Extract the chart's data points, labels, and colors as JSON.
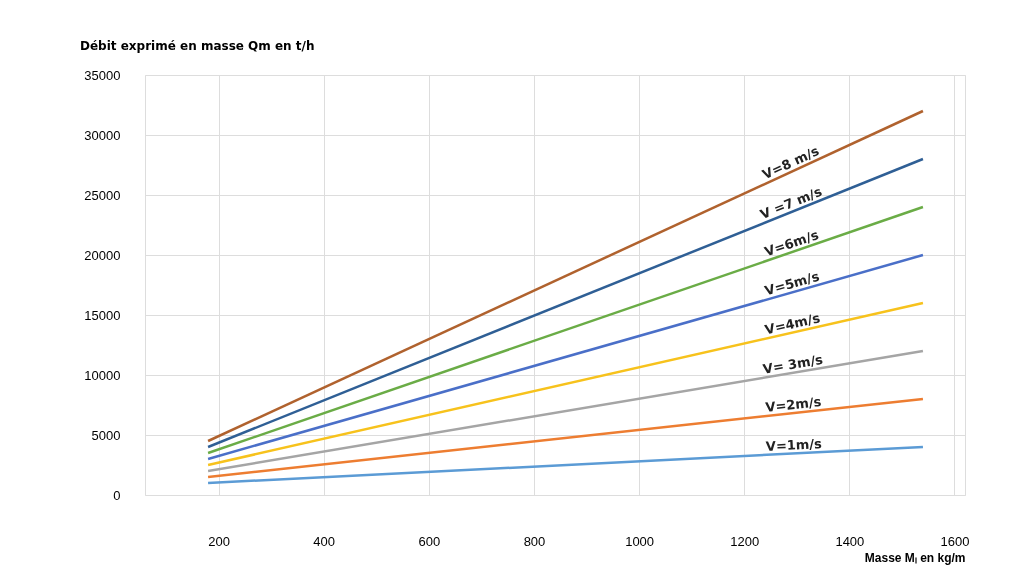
{
  "chart_data": {
    "type": "line",
    "ylabel": "Débit exprimé en masse Qm en t/h",
    "xlabel": "Masse Mₗ en kg/m",
    "xlim": [
      60,
      1620
    ],
    "xticks": [
      200,
      400,
      600,
      800,
      1000,
      1200,
      1400,
      1600
    ],
    "ylim": [
      0,
      35000
    ],
    "yticks": [
      0,
      5000,
      10000,
      15000,
      20000,
      25000,
      30000,
      35000
    ],
    "grid": true,
    "legend": false,
    "line_style": "solid",
    "marker": "none",
    "x": [
      180,
      1540
    ],
    "series": [
      {
        "name": "V=8 m/s",
        "color": "#b0622e",
        "values": [
          4500,
          32000
        ]
      },
      {
        "name": "V =7 m/s",
        "color": "#2f5f95",
        "values": [
          4000,
          28000
        ]
      },
      {
        "name": "V=6m/s",
        "color": "#6aac46",
        "values": [
          3500,
          24000
        ]
      },
      {
        "name": "V=5m/s",
        "color": "#4a6fc8",
        "values": [
          3000,
          20000
        ]
      },
      {
        "name": "V=4m/s",
        "color": "#f7c21c",
        "values": [
          2500,
          16000
        ]
      },
      {
        "name": "V= 3m/s",
        "color": "#a5a5a5",
        "values": [
          2000,
          12000
        ]
      },
      {
        "name": "V=2m/s",
        "color": "#ed7d31",
        "values": [
          1500,
          8000
        ]
      },
      {
        "name": "V=1m/s",
        "color": "#5b9bd5",
        "values": [
          1000,
          4000
        ]
      }
    ]
  }
}
